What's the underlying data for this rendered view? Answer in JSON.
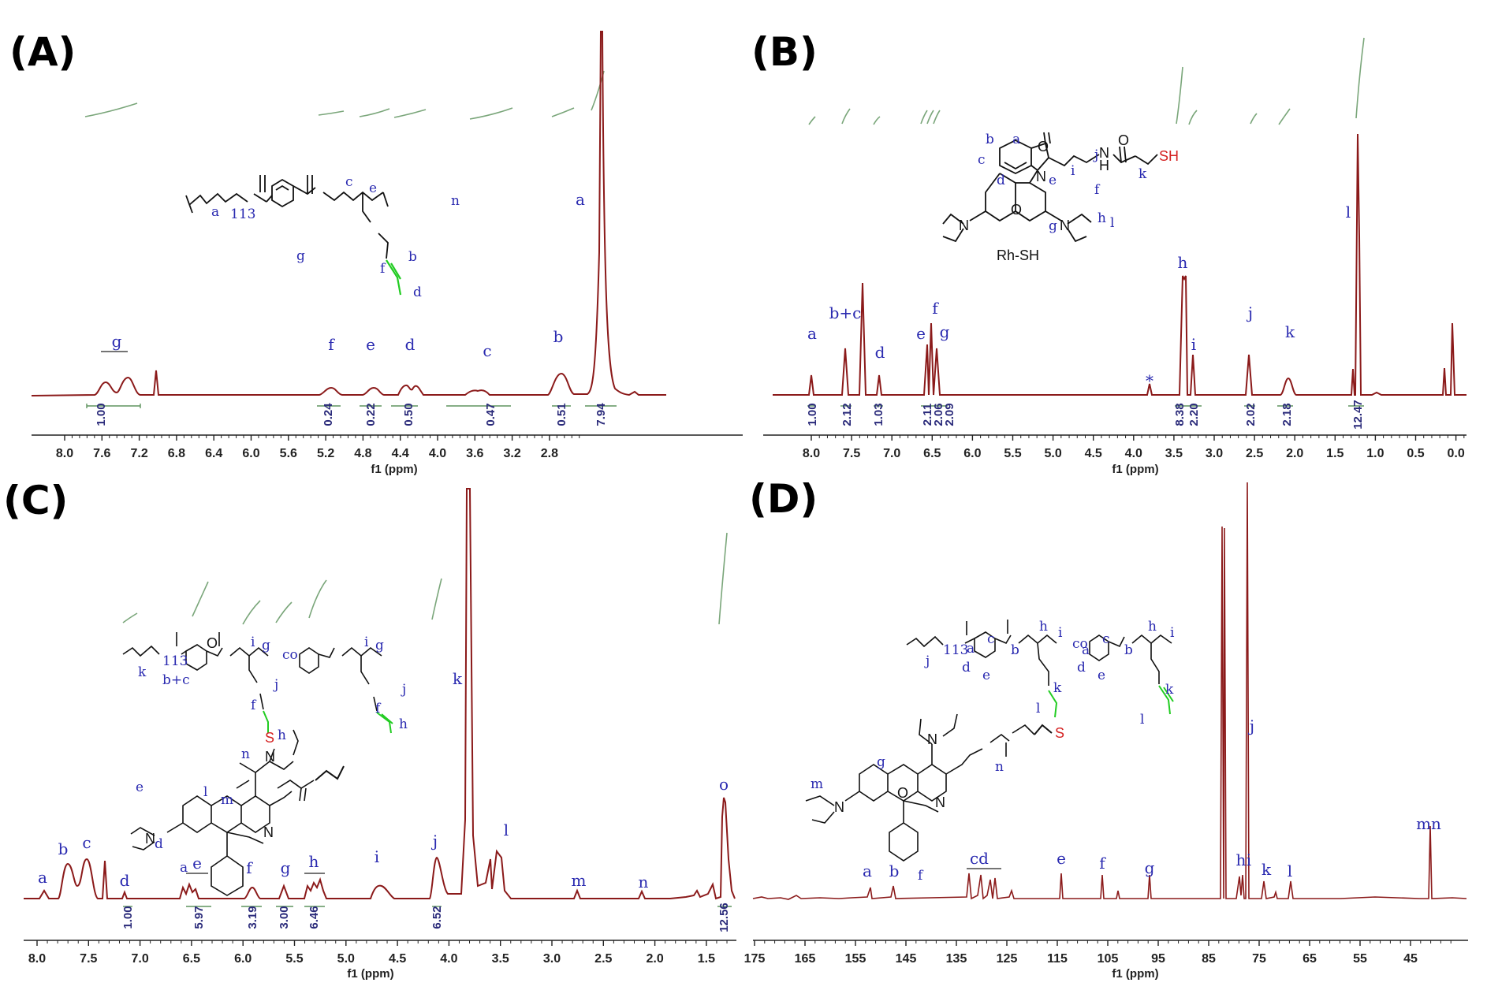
{
  "panels": [
    {
      "letter": "(A)",
      "compound_label": "",
      "xlabel": "f1 (ppm)",
      "ticks": [
        "8.0",
        "7.6",
        "7.2",
        "6.8",
        "6.4",
        "6.0",
        "5.6",
        "5.2",
        "4.8",
        "4.4",
        "4.0",
        "3.6",
        "3.2",
        "2.8"
      ],
      "integrals": [
        "1.00",
        "0.24",
        "0.22",
        "0.50",
        "0.47",
        "0.51",
        "7.94"
      ],
      "peak_labels": [
        "g",
        "f",
        "e",
        "d",
        "c",
        "b",
        "a"
      ],
      "structure_labels": [
        "a",
        "113",
        "c",
        "e",
        "g",
        "b",
        "f",
        "d",
        "n"
      ]
    },
    {
      "letter": "(B)",
      "compound_label": "Rh-SH",
      "xlabel": "f1 (ppm)",
      "ticks": [
        "8.0",
        "7.5",
        "7.0",
        "6.5",
        "6.0",
        "5.5",
        "5.0",
        "4.5",
        "4.0",
        "3.5",
        "3.0",
        "2.5",
        "2.0",
        "1.5",
        "1.0",
        "0.5",
        "0.0"
      ],
      "integrals": [
        "1.00",
        "2.12",
        "1.03",
        "2.11",
        "2.06",
        "2.09",
        "8.38",
        "2.20",
        "2.02",
        "2.18",
        "12.47"
      ],
      "peak_labels": [
        "a",
        "b+c",
        "d",
        "e",
        "f",
        "g",
        "*",
        "h",
        "i",
        "j",
        "k",
        "l"
      ],
      "structure_labels": [
        "b",
        "a",
        "c",
        "d",
        "j",
        "i",
        "f",
        "e",
        "g",
        "h",
        "l",
        "k",
        "SH"
      ]
    },
    {
      "letter": "(C)",
      "compound_label": "",
      "xlabel": "f1 (ppm)",
      "ticks": [
        "8.0",
        "7.5",
        "7.0",
        "6.5",
        "6.0",
        "5.5",
        "5.0",
        "4.5",
        "4.0",
        "3.5",
        "3.0",
        "2.5",
        "2.0",
        "1.5"
      ],
      "integrals": [
        "1.00",
        "5.97",
        "3.19",
        "3.00",
        "6.46",
        "6.52",
        "12.56"
      ],
      "peak_labels": [
        "a",
        "b",
        "c",
        "d",
        "e",
        "f",
        "g",
        "h",
        "i",
        "j",
        "k",
        "l",
        "m",
        "n",
        "o"
      ],
      "structure_labels": [
        "k",
        "113",
        "b+c",
        "i",
        "g",
        "co",
        "i",
        "g",
        "f",
        "j",
        "h",
        "n",
        "l",
        "m",
        "e",
        "d",
        "a",
        "f",
        "j",
        "h",
        "o",
        "l"
      ]
    },
    {
      "letter": "(D)",
      "compound_label": "",
      "xlabel": "f1 (ppm)",
      "ticks": [
        "175",
        "165",
        "155",
        "145",
        "135",
        "125",
        "115",
        "105",
        "95",
        "85",
        "75",
        "65",
        "55",
        "45"
      ],
      "integrals": [],
      "peak_labels": [
        "a",
        "b",
        "cd",
        "e",
        "f",
        "g",
        "j",
        "h",
        "i",
        "k",
        "l",
        "mn"
      ],
      "structure_labels": [
        "j",
        "113",
        "a",
        "d",
        "c",
        "e",
        "b",
        "h",
        "i",
        "co",
        "a",
        "c",
        "d",
        "b",
        "e",
        "h",
        "i",
        "k",
        "l",
        "k",
        "l",
        "n",
        "g",
        "m",
        "f"
      ]
    }
  ],
  "chart_data": [
    {
      "panel": "(A)",
      "type": "line",
      "xlabel": "f1 (ppm)",
      "xlim": [
        8.2,
        2.5
      ],
      "peaks": [
        {
          "label": "g",
          "x": 7.68,
          "y": 0.08
        },
        {
          "label": "g",
          "x": 7.52,
          "y": 0.08
        },
        {
          "label": "",
          "x": 7.26,
          "y": 0.11
        },
        {
          "label": "f",
          "x": 5.86,
          "y": 0.02
        },
        {
          "label": "e",
          "x": 5.5,
          "y": 0.03
        },
        {
          "label": "d",
          "x": 5.24,
          "y": 0.035
        },
        {
          "label": "d",
          "x": 5.16,
          "y": 0.035
        },
        {
          "label": "c",
          "x": 4.62,
          "y": 0.02
        },
        {
          "label": "c",
          "x": 4.54,
          "y": 0.02
        },
        {
          "label": "b",
          "x": 4.0,
          "y": 0.09
        },
        {
          "label": "a",
          "x": 3.63,
          "y": 1.0
        }
      ],
      "integrals": [
        {
          "range": [
            7.8,
            7.4
          ],
          "value": "1.00"
        },
        {
          "range": [
            5.95,
            5.78
          ],
          "value": "0.24"
        },
        {
          "range": [
            5.6,
            5.4
          ],
          "value": "0.22"
        },
        {
          "range": [
            5.3,
            5.1
          ],
          "value": "0.50"
        },
        {
          "range": [
            4.7,
            4.45
          ],
          "value": "0.47"
        },
        {
          "range": [
            4.05,
            3.95
          ],
          "value": "0.51"
        },
        {
          "range": [
            3.78,
            3.52
          ],
          "value": "7.94"
        }
      ]
    },
    {
      "panel": "(B)",
      "type": "line",
      "xlabel": "f1 (ppm)",
      "xlim": [
        8.5,
        -0.15
      ],
      "peaks": [
        {
          "label": "a",
          "x": 7.9,
          "y": 0.08
        },
        {
          "label": "b+c",
          "x": 7.45,
          "y": 0.17
        },
        {
          "label": "",
          "x": 7.26,
          "y": 0.36
        },
        {
          "label": "d",
          "x": 7.09,
          "y": 0.08
        },
        {
          "label": "e",
          "x": 6.42,
          "y": 0.19
        },
        {
          "label": "f",
          "x": 6.36,
          "y": 0.24
        },
        {
          "label": "g",
          "x": 6.27,
          "y": 0.17
        },
        {
          "label": "*",
          "x": 3.72,
          "y": 0.04
        },
        {
          "label": "h",
          "x": 3.33,
          "y": 0.5
        },
        {
          "label": "i",
          "x": 3.22,
          "y": 0.16
        },
        {
          "label": "j",
          "x": 2.45,
          "y": 0.17
        },
        {
          "label": "k",
          "x": 2.04,
          "y": 0.07
        },
        {
          "label": "",
          "x": 1.21,
          "y": 0.25
        },
        {
          "label": "l",
          "x": 1.17,
          "y": 1.0
        },
        {
          "label": "",
          "x": 0.08,
          "y": 0.11
        },
        {
          "label": "",
          "x": 0.0,
          "y": 0.18
        }
      ],
      "integrals": [
        {
          "range": [
            7.95,
            7.85
          ],
          "value": "1.00"
        },
        {
          "range": [
            7.5,
            7.4
          ],
          "value": "2.12"
        },
        {
          "range": [
            7.15,
            7.05
          ],
          "value": "1.03"
        },
        {
          "range": [
            6.5,
            6.38
          ],
          "value": "2.11"
        },
        {
          "range": [
            6.38,
            6.31
          ],
          "value": "2.06"
        },
        {
          "range": [
            6.31,
            6.2
          ],
          "value": "2.09"
        },
        {
          "range": [
            3.4,
            3.26
          ],
          "value": "8.38"
        },
        {
          "range": [
            3.26,
            3.15
          ],
          "value": "2.20"
        },
        {
          "range": [
            2.5,
            2.4
          ],
          "value": "2.02"
        },
        {
          "range": [
            2.1,
            1.98
          ],
          "value": "2.18"
        },
        {
          "range": [
            1.25,
            1.1
          ],
          "value": "12.47"
        }
      ]
    },
    {
      "panel": "(C)",
      "type": "line",
      "xlabel": "f1 (ppm)",
      "xlim": [
        8.05,
        1.2
      ],
      "peaks": [
        {
          "label": "a",
          "x": 7.87,
          "y": 0.015
        },
        {
          "label": "b",
          "x": 7.73,
          "y": 0.09
        },
        {
          "label": "c",
          "x": 7.52,
          "y": 0.1
        },
        {
          "label": "",
          "x": 7.26,
          "y": 0.1
        },
        {
          "label": "d",
          "x": 7.1,
          "y": 0.01
        },
        {
          "label": "e",
          "x": 6.43,
          "y": 0.05
        },
        {
          "label": "e",
          "x": 6.36,
          "y": 0.06
        },
        {
          "label": "e",
          "x": 6.28,
          "y": 0.04
        },
        {
          "label": "f",
          "x": 5.86,
          "y": 0.03
        },
        {
          "label": "g",
          "x": 5.5,
          "y": 0.04
        },
        {
          "label": "h",
          "x": 5.27,
          "y": 0.05
        },
        {
          "label": "h",
          "x": 5.16,
          "y": 0.055
        },
        {
          "label": "i",
          "x": 4.58,
          "y": 0.04
        },
        {
          "label": "j",
          "x": 4.0,
          "y": 0.12
        },
        {
          "label": "k",
          "x": 3.64,
          "y": 1.0
        },
        {
          "label": "l",
          "x": 3.32,
          "y": 0.12
        },
        {
          "label": "m",
          "x": 2.62,
          "y": 0.01
        },
        {
          "label": "n",
          "x": 1.95,
          "y": 0.01
        },
        {
          "label": "o",
          "x": 1.25,
          "y": 0.24
        }
      ],
      "integrals": [
        {
          "range": [
            7.15,
            7.05
          ],
          "value": "1.00"
        },
        {
          "range": [
            6.5,
            6.2
          ],
          "value": "5.97"
        },
        {
          "range": [
            5.95,
            5.78
          ],
          "value": "3.19"
        },
        {
          "range": [
            5.6,
            5.4
          ],
          "value": "3.00"
        },
        {
          "range": [
            5.32,
            5.1
          ],
          "value": "6.46"
        },
        {
          "range": [
            4.05,
            3.95
          ],
          "value": "6.52"
        },
        {
          "range": [
            1.32,
            1.18
          ],
          "value": "12.56"
        }
      ]
    },
    {
      "panel": "(D)",
      "type": "line",
      "xlabel": "f1 (ppm)",
      "xlim": [
        175,
        41
      ],
      "peaks": [
        {
          "label": "a",
          "x": 153.5,
          "y": 0.03
        },
        {
          "label": "b",
          "x": 149.0,
          "y": 0.03
        },
        {
          "label": "cd",
          "x": 133.5,
          "y": 0.05
        },
        {
          "label": "cd",
          "x": 131.5,
          "y": 0.04
        },
        {
          "label": "cd",
          "x": 129.5,
          "y": 0.035
        },
        {
          "label": "cd",
          "x": 128.5,
          "y": 0.03
        },
        {
          "label": "e",
          "x": 116.0,
          "y": 0.05
        },
        {
          "label": "f",
          "x": 108.0,
          "y": 0.04
        },
        {
          "label": "",
          "x": 104.5,
          "y": 0.015
        },
        {
          "label": "g",
          "x": 97.5,
          "y": 0.035
        },
        {
          "label": "",
          "x": 77.0,
          "y": 0.82
        },
        {
          "label": "",
          "x": 76.5,
          "y": 0.83
        },
        {
          "label": "j",
          "x": 70.5,
          "y": 1.0
        },
        {
          "label": "h",
          "x": 72.0,
          "y": 0.04
        },
        {
          "label": "i",
          "x": 71.5,
          "y": 0.05
        },
        {
          "label": "k",
          "x": 68.0,
          "y": 0.03
        },
        {
          "label": "l",
          "x": 63.5,
          "y": 0.025
        },
        {
          "label": "mn",
          "x": 44.5,
          "y": 0.17
        }
      ],
      "integrals": []
    }
  ],
  "colors": {
    "spectrum": "#8b1a1a",
    "integral_curve": "#6a9a6a",
    "peak_label": "#2a2ab0",
    "allyl_highlight": "#22cc22",
    "sulfur_highlight": "#d42020"
  }
}
